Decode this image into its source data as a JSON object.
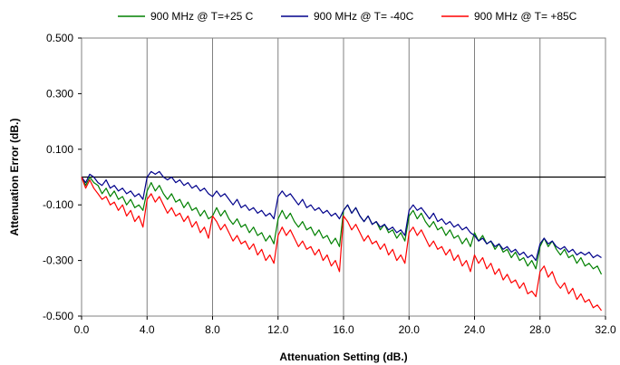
{
  "chart_data": {
    "type": "line",
    "title": "",
    "xlabel": "Attenuation Setting (dB.)",
    "ylabel": "Attenuation Error (dB.)",
    "xlim": [
      0,
      32
    ],
    "ylim": [
      -0.5,
      0.5
    ],
    "xticks": [
      0,
      4,
      8,
      12,
      16,
      20,
      24,
      28,
      32
    ],
    "yticks": [
      0.5,
      0.3,
      0.1,
      -0.1,
      -0.3,
      -0.5
    ],
    "xtick_labels": [
      "0.0",
      "4.0",
      "8.0",
      "12.0",
      "16.0",
      "20.0",
      "24.0",
      "28.0",
      "32.0"
    ],
    "ytick_labels": [
      "0.500",
      "0.300",
      "0.100",
      "-0.100",
      "-0.300",
      "-0.500"
    ],
    "grid": "vertical",
    "legend_position": "top",
    "x": [
      0.0,
      0.25,
      0.5,
      0.75,
      1.0,
      1.25,
      1.5,
      1.75,
      2.0,
      2.25,
      2.5,
      2.75,
      3.0,
      3.25,
      3.5,
      3.75,
      4.0,
      4.25,
      4.5,
      4.75,
      5.0,
      5.25,
      5.5,
      5.75,
      6.0,
      6.25,
      6.5,
      6.75,
      7.0,
      7.25,
      7.5,
      7.75,
      8.0,
      8.25,
      8.5,
      8.75,
      9.0,
      9.25,
      9.5,
      9.75,
      10.0,
      10.25,
      10.5,
      10.75,
      11.0,
      11.25,
      11.5,
      11.75,
      12.0,
      12.25,
      12.5,
      12.75,
      13.0,
      13.25,
      13.5,
      13.75,
      14.0,
      14.25,
      14.5,
      14.75,
      15.0,
      15.25,
      15.5,
      15.75,
      16.0,
      16.25,
      16.5,
      16.75,
      17.0,
      17.25,
      17.5,
      17.75,
      18.0,
      18.25,
      18.5,
      18.75,
      19.0,
      19.25,
      19.5,
      19.75,
      20.0,
      20.25,
      20.5,
      20.75,
      21.0,
      21.25,
      21.5,
      21.75,
      22.0,
      22.25,
      22.5,
      22.75,
      23.0,
      23.25,
      23.5,
      23.75,
      24.0,
      24.25,
      24.5,
      24.75,
      25.0,
      25.25,
      25.5,
      25.75,
      26.0,
      26.25,
      26.5,
      26.75,
      27.0,
      27.25,
      27.5,
      27.75,
      28.0,
      28.25,
      28.5,
      28.75,
      29.0,
      29.25,
      29.5,
      29.75,
      30.0,
      30.25,
      30.5,
      30.75,
      31.0,
      31.25,
      31.5,
      31.75
    ],
    "series": [
      {
        "name": "900 MHz @ T=+25 C",
        "color": "#008000",
        "values": [
          0.0,
          -0.03,
          0.0,
          -0.02,
          -0.03,
          -0.06,
          -0.04,
          -0.07,
          -0.05,
          -0.08,
          -0.07,
          -0.1,
          -0.08,
          -0.11,
          -0.1,
          -0.12,
          -0.05,
          -0.02,
          -0.05,
          -0.03,
          -0.06,
          -0.08,
          -0.06,
          -0.09,
          -0.08,
          -0.11,
          -0.09,
          -0.12,
          -0.11,
          -0.14,
          -0.12,
          -0.15,
          -0.14,
          -0.11,
          -0.14,
          -0.12,
          -0.15,
          -0.17,
          -0.15,
          -0.18,
          -0.17,
          -0.2,
          -0.18,
          -0.21,
          -0.2,
          -0.23,
          -0.21,
          -0.24,
          -0.15,
          -0.12,
          -0.15,
          -0.13,
          -0.16,
          -0.18,
          -0.16,
          -0.19,
          -0.18,
          -0.21,
          -0.19,
          -0.22,
          -0.21,
          -0.24,
          -0.22,
          -0.25,
          -0.12,
          -0.1,
          -0.13,
          -0.11,
          -0.14,
          -0.16,
          -0.14,
          -0.17,
          -0.16,
          -0.19,
          -0.17,
          -0.2,
          -0.19,
          -0.22,
          -0.2,
          -0.23,
          -0.14,
          -0.12,
          -0.15,
          -0.13,
          -0.16,
          -0.18,
          -0.16,
          -0.19,
          -0.18,
          -0.21,
          -0.19,
          -0.22,
          -0.21,
          -0.24,
          -0.22,
          -0.25,
          -0.2,
          -0.23,
          -0.21,
          -0.24,
          -0.23,
          -0.26,
          -0.24,
          -0.27,
          -0.26,
          -0.29,
          -0.27,
          -0.3,
          -0.29,
          -0.32,
          -0.3,
          -0.33,
          -0.25,
          -0.22,
          -0.25,
          -0.23,
          -0.26,
          -0.28,
          -0.26,
          -0.29,
          -0.28,
          -0.31,
          -0.29,
          -0.32,
          -0.31,
          -0.33,
          -0.32,
          -0.35
        ]
      },
      {
        "name": "900 MHz @ T= -40C",
        "color": "#00008B",
        "values": [
          0.0,
          -0.02,
          0.01,
          0.0,
          -0.02,
          -0.03,
          -0.01,
          -0.04,
          -0.03,
          -0.05,
          -0.04,
          -0.06,
          -0.05,
          -0.07,
          -0.06,
          -0.08,
          0.0,
          0.02,
          0.01,
          0.02,
          0.0,
          -0.01,
          0.0,
          -0.02,
          -0.01,
          -0.03,
          -0.02,
          -0.04,
          -0.03,
          -0.05,
          -0.04,
          -0.06,
          -0.07,
          -0.05,
          -0.07,
          -0.06,
          -0.08,
          -0.1,
          -0.08,
          -0.11,
          -0.1,
          -0.12,
          -0.11,
          -0.13,
          -0.12,
          -0.14,
          -0.13,
          -0.15,
          -0.07,
          -0.05,
          -0.07,
          -0.06,
          -0.08,
          -0.1,
          -0.08,
          -0.11,
          -0.1,
          -0.12,
          -0.11,
          -0.13,
          -0.12,
          -0.14,
          -0.13,
          -0.15,
          -0.12,
          -0.1,
          -0.13,
          -0.11,
          -0.14,
          -0.16,
          -0.14,
          -0.17,
          -0.16,
          -0.18,
          -0.17,
          -0.19,
          -0.18,
          -0.2,
          -0.19,
          -0.21,
          -0.12,
          -0.1,
          -0.12,
          -0.11,
          -0.13,
          -0.15,
          -0.13,
          -0.16,
          -0.15,
          -0.17,
          -0.16,
          -0.18,
          -0.17,
          -0.19,
          -0.18,
          -0.2,
          -0.21,
          -0.23,
          -0.22,
          -0.24,
          -0.23,
          -0.25,
          -0.24,
          -0.26,
          -0.25,
          -0.27,
          -0.26,
          -0.28,
          -0.27,
          -0.29,
          -0.28,
          -0.3,
          -0.24,
          -0.22,
          -0.24,
          -0.23,
          -0.25,
          -0.26,
          -0.25,
          -0.27,
          -0.26,
          -0.28,
          -0.27,
          -0.28,
          -0.27,
          -0.29,
          -0.28,
          -0.29
        ]
      },
      {
        "name": "900 MHz @ T= +85C",
        "color": "#FF0000",
        "values": [
          0.0,
          -0.04,
          -0.01,
          -0.04,
          -0.06,
          -0.08,
          -0.07,
          -0.1,
          -0.09,
          -0.12,
          -0.1,
          -0.14,
          -0.12,
          -0.16,
          -0.14,
          -0.18,
          -0.08,
          -0.06,
          -0.09,
          -0.07,
          -0.1,
          -0.13,
          -0.11,
          -0.14,
          -0.13,
          -0.16,
          -0.14,
          -0.18,
          -0.16,
          -0.2,
          -0.18,
          -0.22,
          -0.14,
          -0.16,
          -0.19,
          -0.17,
          -0.2,
          -0.23,
          -0.21,
          -0.24,
          -0.23,
          -0.26,
          -0.24,
          -0.28,
          -0.26,
          -0.3,
          -0.28,
          -0.31,
          -0.21,
          -0.18,
          -0.21,
          -0.19,
          -0.22,
          -0.25,
          -0.23,
          -0.26,
          -0.25,
          -0.28,
          -0.26,
          -0.3,
          -0.28,
          -0.32,
          -0.3,
          -0.34,
          -0.14,
          -0.16,
          -0.19,
          -0.17,
          -0.2,
          -0.23,
          -0.21,
          -0.24,
          -0.23,
          -0.26,
          -0.24,
          -0.28,
          -0.26,
          -0.3,
          -0.28,
          -0.31,
          -0.2,
          -0.18,
          -0.21,
          -0.19,
          -0.22,
          -0.25,
          -0.23,
          -0.26,
          -0.25,
          -0.28,
          -0.26,
          -0.3,
          -0.28,
          -0.32,
          -0.3,
          -0.34,
          -0.28,
          -0.31,
          -0.29,
          -0.33,
          -0.31,
          -0.35,
          -0.33,
          -0.37,
          -0.35,
          -0.38,
          -0.37,
          -0.4,
          -0.38,
          -0.42,
          -0.41,
          -0.43,
          -0.34,
          -0.32,
          -0.36,
          -0.34,
          -0.38,
          -0.4,
          -0.38,
          -0.42,
          -0.4,
          -0.44,
          -0.42,
          -0.45,
          -0.44,
          -0.47,
          -0.46,
          -0.48
        ]
      }
    ]
  }
}
